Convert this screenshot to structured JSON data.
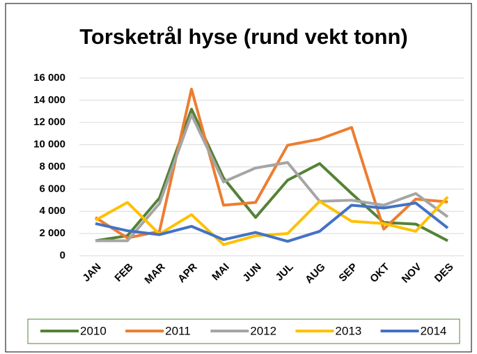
{
  "chart_data": {
    "type": "line",
    "title": "Torsketrål hyse (rund vekt tonn)",
    "categories": [
      "JAN",
      "FEB",
      "MAR",
      "APR",
      "MAI",
      "JUN",
      "JUL",
      "AUG",
      "SEP",
      "OKT",
      "NOV",
      "DES"
    ],
    "series": [
      {
        "name": "2010",
        "color": "#548235",
        "values": [
          1350,
          1800,
          5200,
          13200,
          7000,
          3450,
          6800,
          8300,
          5600,
          3000,
          2850,
          1350
        ]
      },
      {
        "name": "2011",
        "color": "#ed7d31",
        "values": [
          3450,
          1600,
          2200,
          15000,
          4550,
          4800,
          9950,
          10500,
          11550,
          2400,
          5100,
          4850
        ]
      },
      {
        "name": "2012",
        "color": "#a5a5a5",
        "values": [
          1350,
          1350,
          4700,
          12700,
          6650,
          7900,
          8400,
          4900,
          5000,
          4550,
          5600,
          3500
        ]
      },
      {
        "name": "2013",
        "color": "#ffc000",
        "values": [
          3200,
          4800,
          1950,
          3700,
          1000,
          1800,
          2000,
          4900,
          3100,
          2900,
          2200,
          5300
        ]
      },
      {
        "name": "2014",
        "color": "#4472c4",
        "values": [
          2900,
          2250,
          1900,
          2650,
          1450,
          2100,
          1300,
          2200,
          4550,
          4300,
          4750,
          2500
        ]
      }
    ],
    "ylim": [
      0,
      16000
    ],
    "yticks": [
      {
        "value": 0,
        "label": "0"
      },
      {
        "value": 2000,
        "label": "2 000"
      },
      {
        "value": 4000,
        "label": "4 000"
      },
      {
        "value": 6000,
        "label": "6 000"
      },
      {
        "value": 8000,
        "label": "8 000"
      },
      {
        "value": 10000,
        "label": "10 000"
      },
      {
        "value": 12000,
        "label": "12 000"
      },
      {
        "value": 14000,
        "label": "14 000"
      },
      {
        "value": 16000,
        "label": "16 000"
      }
    ],
    "grid": true,
    "legend": "bottom"
  }
}
